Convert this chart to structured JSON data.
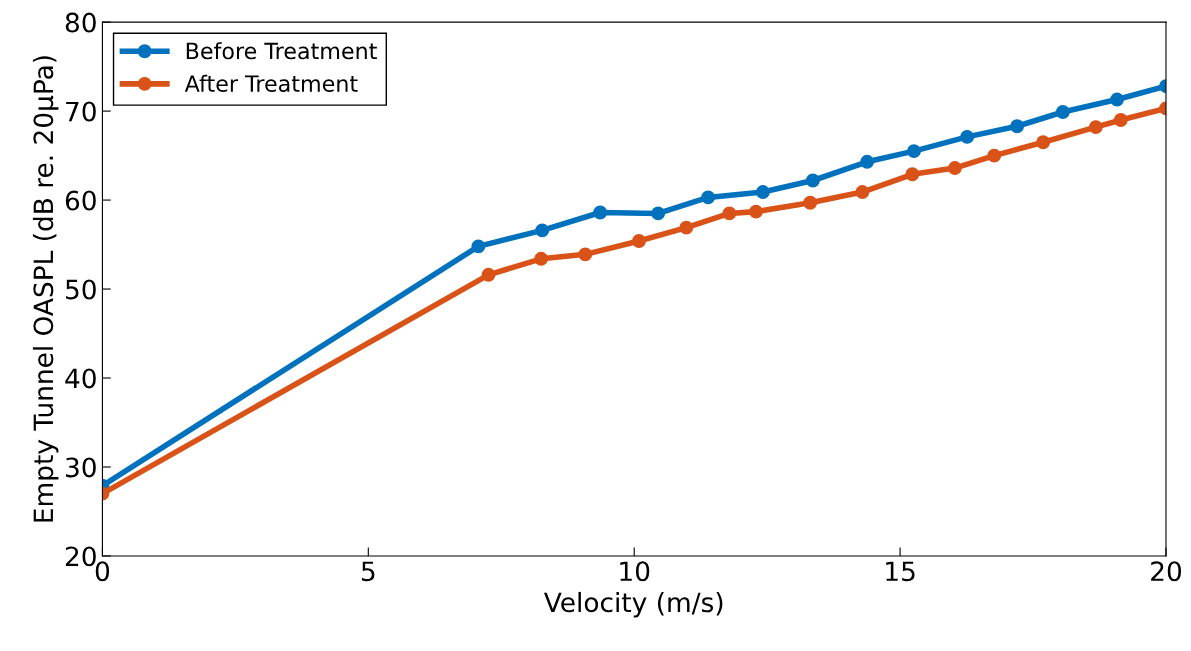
{
  "chart_data": {
    "type": "line",
    "xlabel": "Velocity (m/s)",
    "ylabel": "Empty Tunnel OASPL (dB re. 20μPa)",
    "xlim": [
      0,
      20
    ],
    "xticks": [
      0,
      5,
      10,
      15,
      20
    ],
    "ylim": [
      20,
      80
    ],
    "yticks": [
      20,
      30,
      40,
      50,
      60,
      70,
      80
    ],
    "marker": "circle",
    "line_style": "solid",
    "legend": "top left",
    "grid": false,
    "series": [
      {
        "name": "Before Treatment",
        "color": "#0072bd",
        "x": [
          0,
          7.07,
          8.27,
          9.36,
          10.45,
          11.39,
          12.42,
          13.36,
          14.38,
          15.26,
          16.26,
          17.2,
          18.06,
          19.08,
          20
        ],
        "values": [
          27.9,
          54.8,
          56.6,
          58.6,
          58.5,
          60.3,
          60.9,
          62.2,
          64.3,
          65.5,
          67.1,
          68.3,
          69.9,
          71.3,
          72.8
        ]
      },
      {
        "name": "After Treatment",
        "color": "#d95319",
        "x": [
          0,
          7.26,
          8.25,
          9.08,
          10.09,
          10.98,
          11.79,
          12.29,
          13.31,
          14.29,
          15.23,
          16.03,
          16.77,
          17.69,
          18.68,
          19.15,
          20
        ],
        "values": [
          27.0,
          51.6,
          53.4,
          53.9,
          55.4,
          56.9,
          58.5,
          58.7,
          59.7,
          60.9,
          62.9,
          63.6,
          65.0,
          66.5,
          68.2,
          69.0,
          70.3
        ]
      }
    ]
  }
}
